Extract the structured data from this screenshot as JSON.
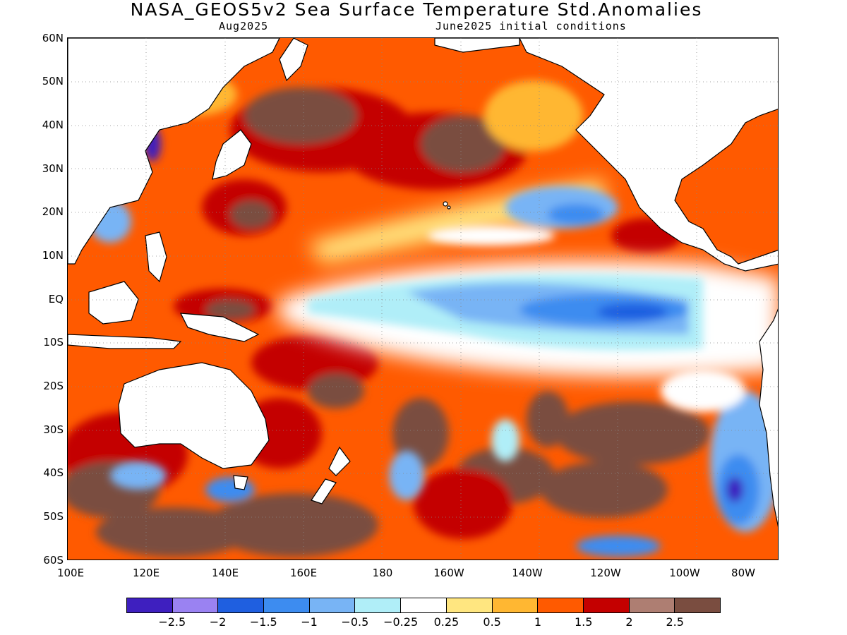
{
  "title": "NASA_GEOS5v2 Sea Surface Temperature Std.Anomalies",
  "subtitle_left": "Aug2025",
  "subtitle_right": "June2025 initial conditions",
  "lat_labels": [
    "60N",
    "50N",
    "40N",
    "30N",
    "20N",
    "10N",
    "EQ",
    "10S",
    "20S",
    "30S",
    "40S",
    "50S",
    "60S"
  ],
  "lon_labels": [
    "100E",
    "120E",
    "140E",
    "160E",
    "180",
    "160W",
    "140W",
    "120W",
    "100W",
    "80W"
  ],
  "colorbar": {
    "colors": [
      "#3e1fbf",
      "#9a82f2",
      "#1f5fe0",
      "#3d8cf0",
      "#78b4f5",
      "#b0eef8",
      "#ffffff",
      "#ffe680",
      "#ffb732",
      "#ff5a00",
      "#c40000",
      "#ae7e72",
      "#7a4d40"
    ],
    "labels": [
      "-2.5",
      "-2",
      "-1.5",
      "-1",
      "-0.5",
      "-0.25",
      "0.25",
      "0.5",
      "1",
      "1.5",
      "2",
      "2.5"
    ]
  }
}
